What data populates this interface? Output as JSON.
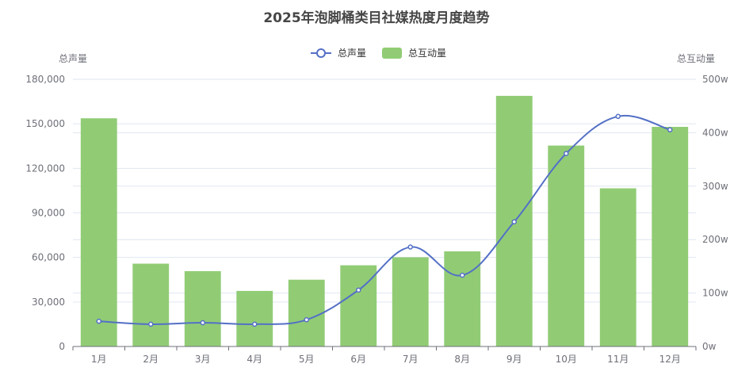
{
  "chart_data": {
    "type": "bar",
    "title": "2025年泡脚桶类目社媒热度月度趋势",
    "categories": [
      "1月",
      "2月",
      "3月",
      "4月",
      "5月",
      "6月",
      "7月",
      "8月",
      "9月",
      "10月",
      "11月",
      "12月"
    ],
    "series": [
      {
        "name": "总声量",
        "type": "line",
        "axis": "left",
        "values": [
          17000,
          15000,
          16000,
          15000,
          18000,
          38000,
          67000,
          48000,
          84000,
          130000,
          155000,
          146000
        ]
      },
      {
        "name": "总互动量",
        "type": "bar",
        "axis": "right",
        "values": [
          427,
          155,
          141,
          104,
          125,
          152,
          167,
          178,
          469,
          376,
          296,
          411
        ]
      }
    ],
    "left_axis": {
      "name": "总声量",
      "min": 0,
      "max": 180000,
      "ticks": [
        "0",
        "30,000",
        "60,000",
        "90,000",
        "120,000",
        "150,000",
        "180,000"
      ]
    },
    "right_axis": {
      "name": "总互动量",
      "min": 0,
      "max": 500,
      "unit": "w",
      "ticks": [
        "0w",
        "100w",
        "200w",
        "300w",
        "400w",
        "500w"
      ]
    },
    "legend_position": "top-center",
    "grid": true,
    "colors": {
      "line": "#5470c6",
      "bar": "#91cc75",
      "grid": "#e0e6f1",
      "axis": "#6e7079"
    }
  }
}
